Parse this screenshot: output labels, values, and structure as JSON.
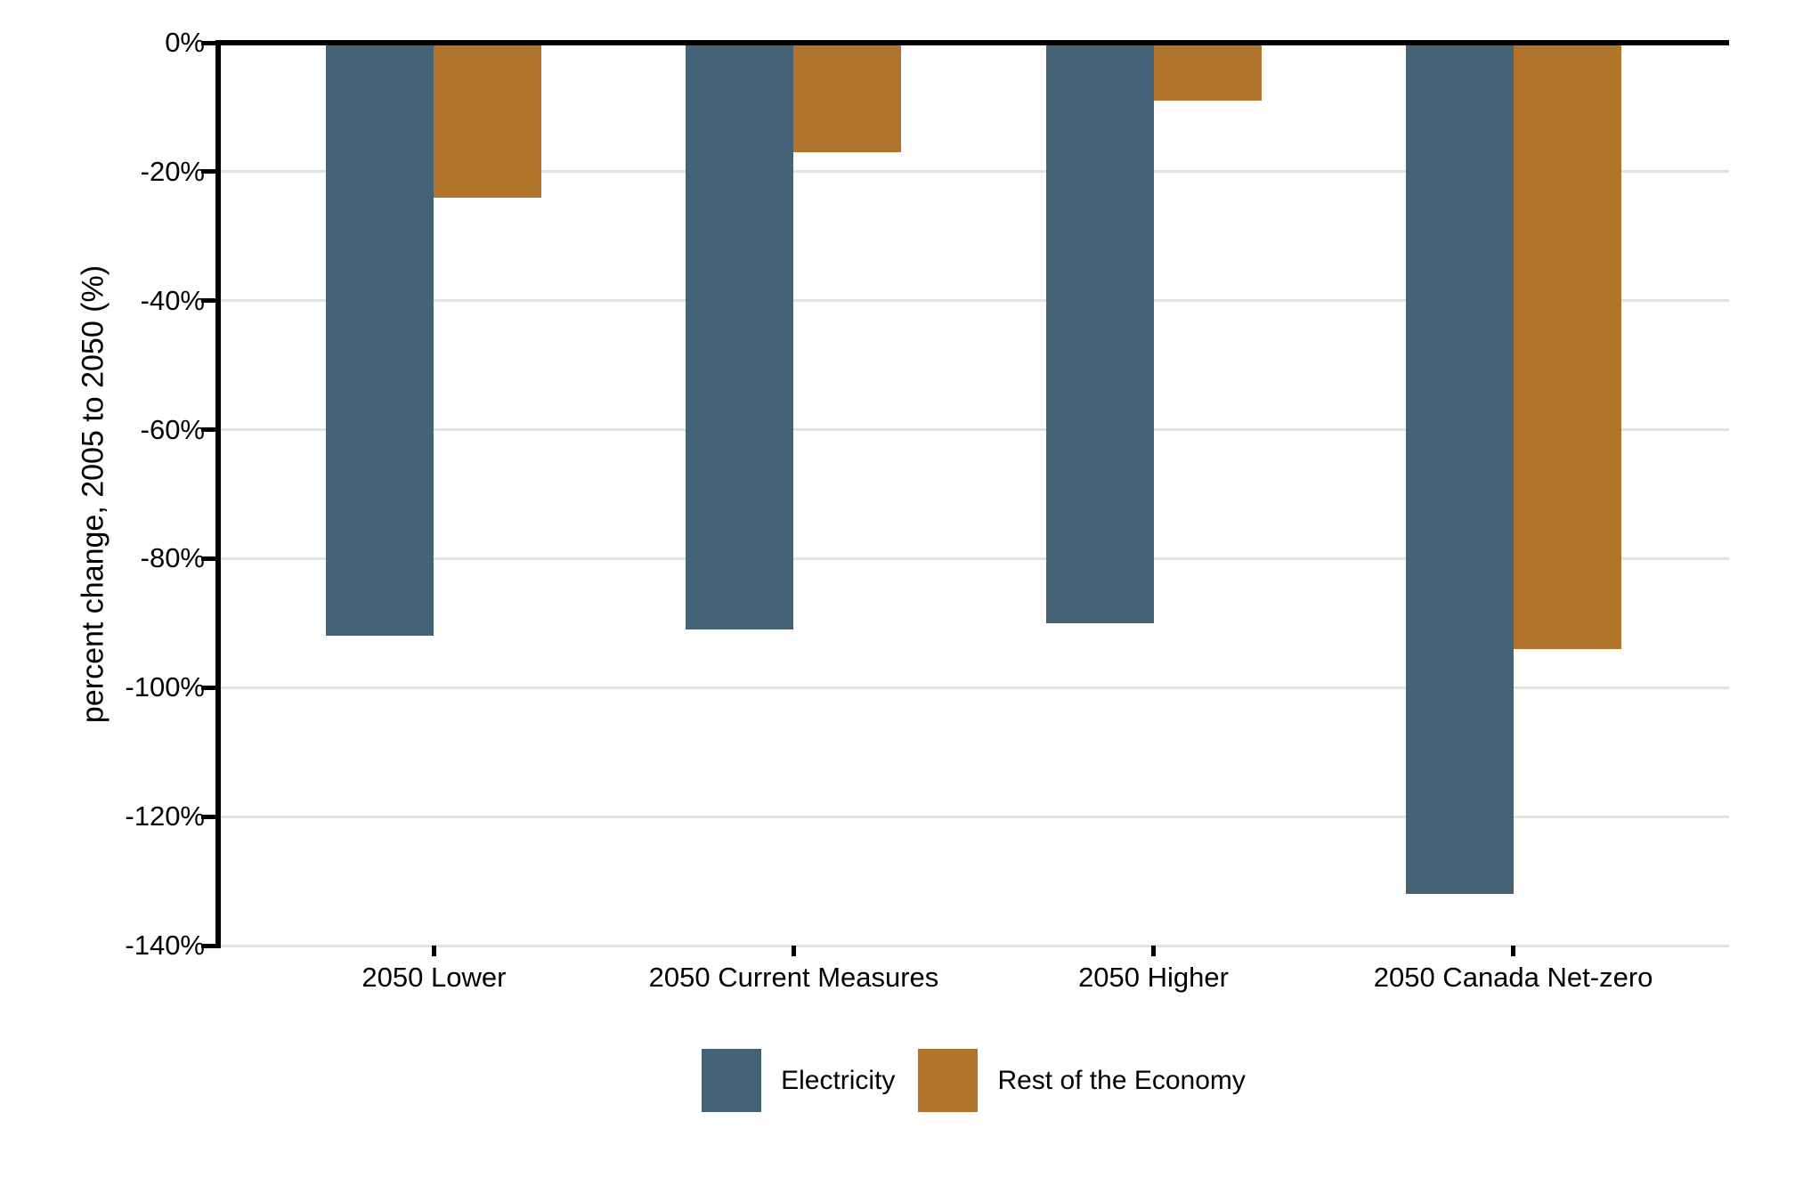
{
  "chart_data": {
    "type": "bar",
    "title": "",
    "xlabel": "",
    "ylabel": "percent change, 2005 to 2050 (%)",
    "categories": [
      "2050 Lower",
      "2050 Current Measures",
      "2050 Higher",
      "2050 Canada Net-zero"
    ],
    "series": [
      {
        "name": "Electricity",
        "color": "#446377",
        "values": [
          -92,
          -91,
          -90,
          -132
        ]
      },
      {
        "name": "Rest of the Economy",
        "color": "#B0752B",
        "values": [
          -24,
          -17,
          -9,
          -94
        ]
      }
    ],
    "ylim": [
      -140,
      0
    ],
    "ytick_step": 20,
    "ytick_labels": [
      "0%",
      "-20%",
      "-40%",
      "-60%",
      "-80%",
      "-100%",
      "-120%",
      "-140%"
    ],
    "grid": "horizontal-light-gray",
    "legend_position": "bottom-center",
    "colors": {
      "axis": "#000000",
      "gridline": "#e3e3e3",
      "background": "#ffffff",
      "text": "#000000"
    }
  }
}
